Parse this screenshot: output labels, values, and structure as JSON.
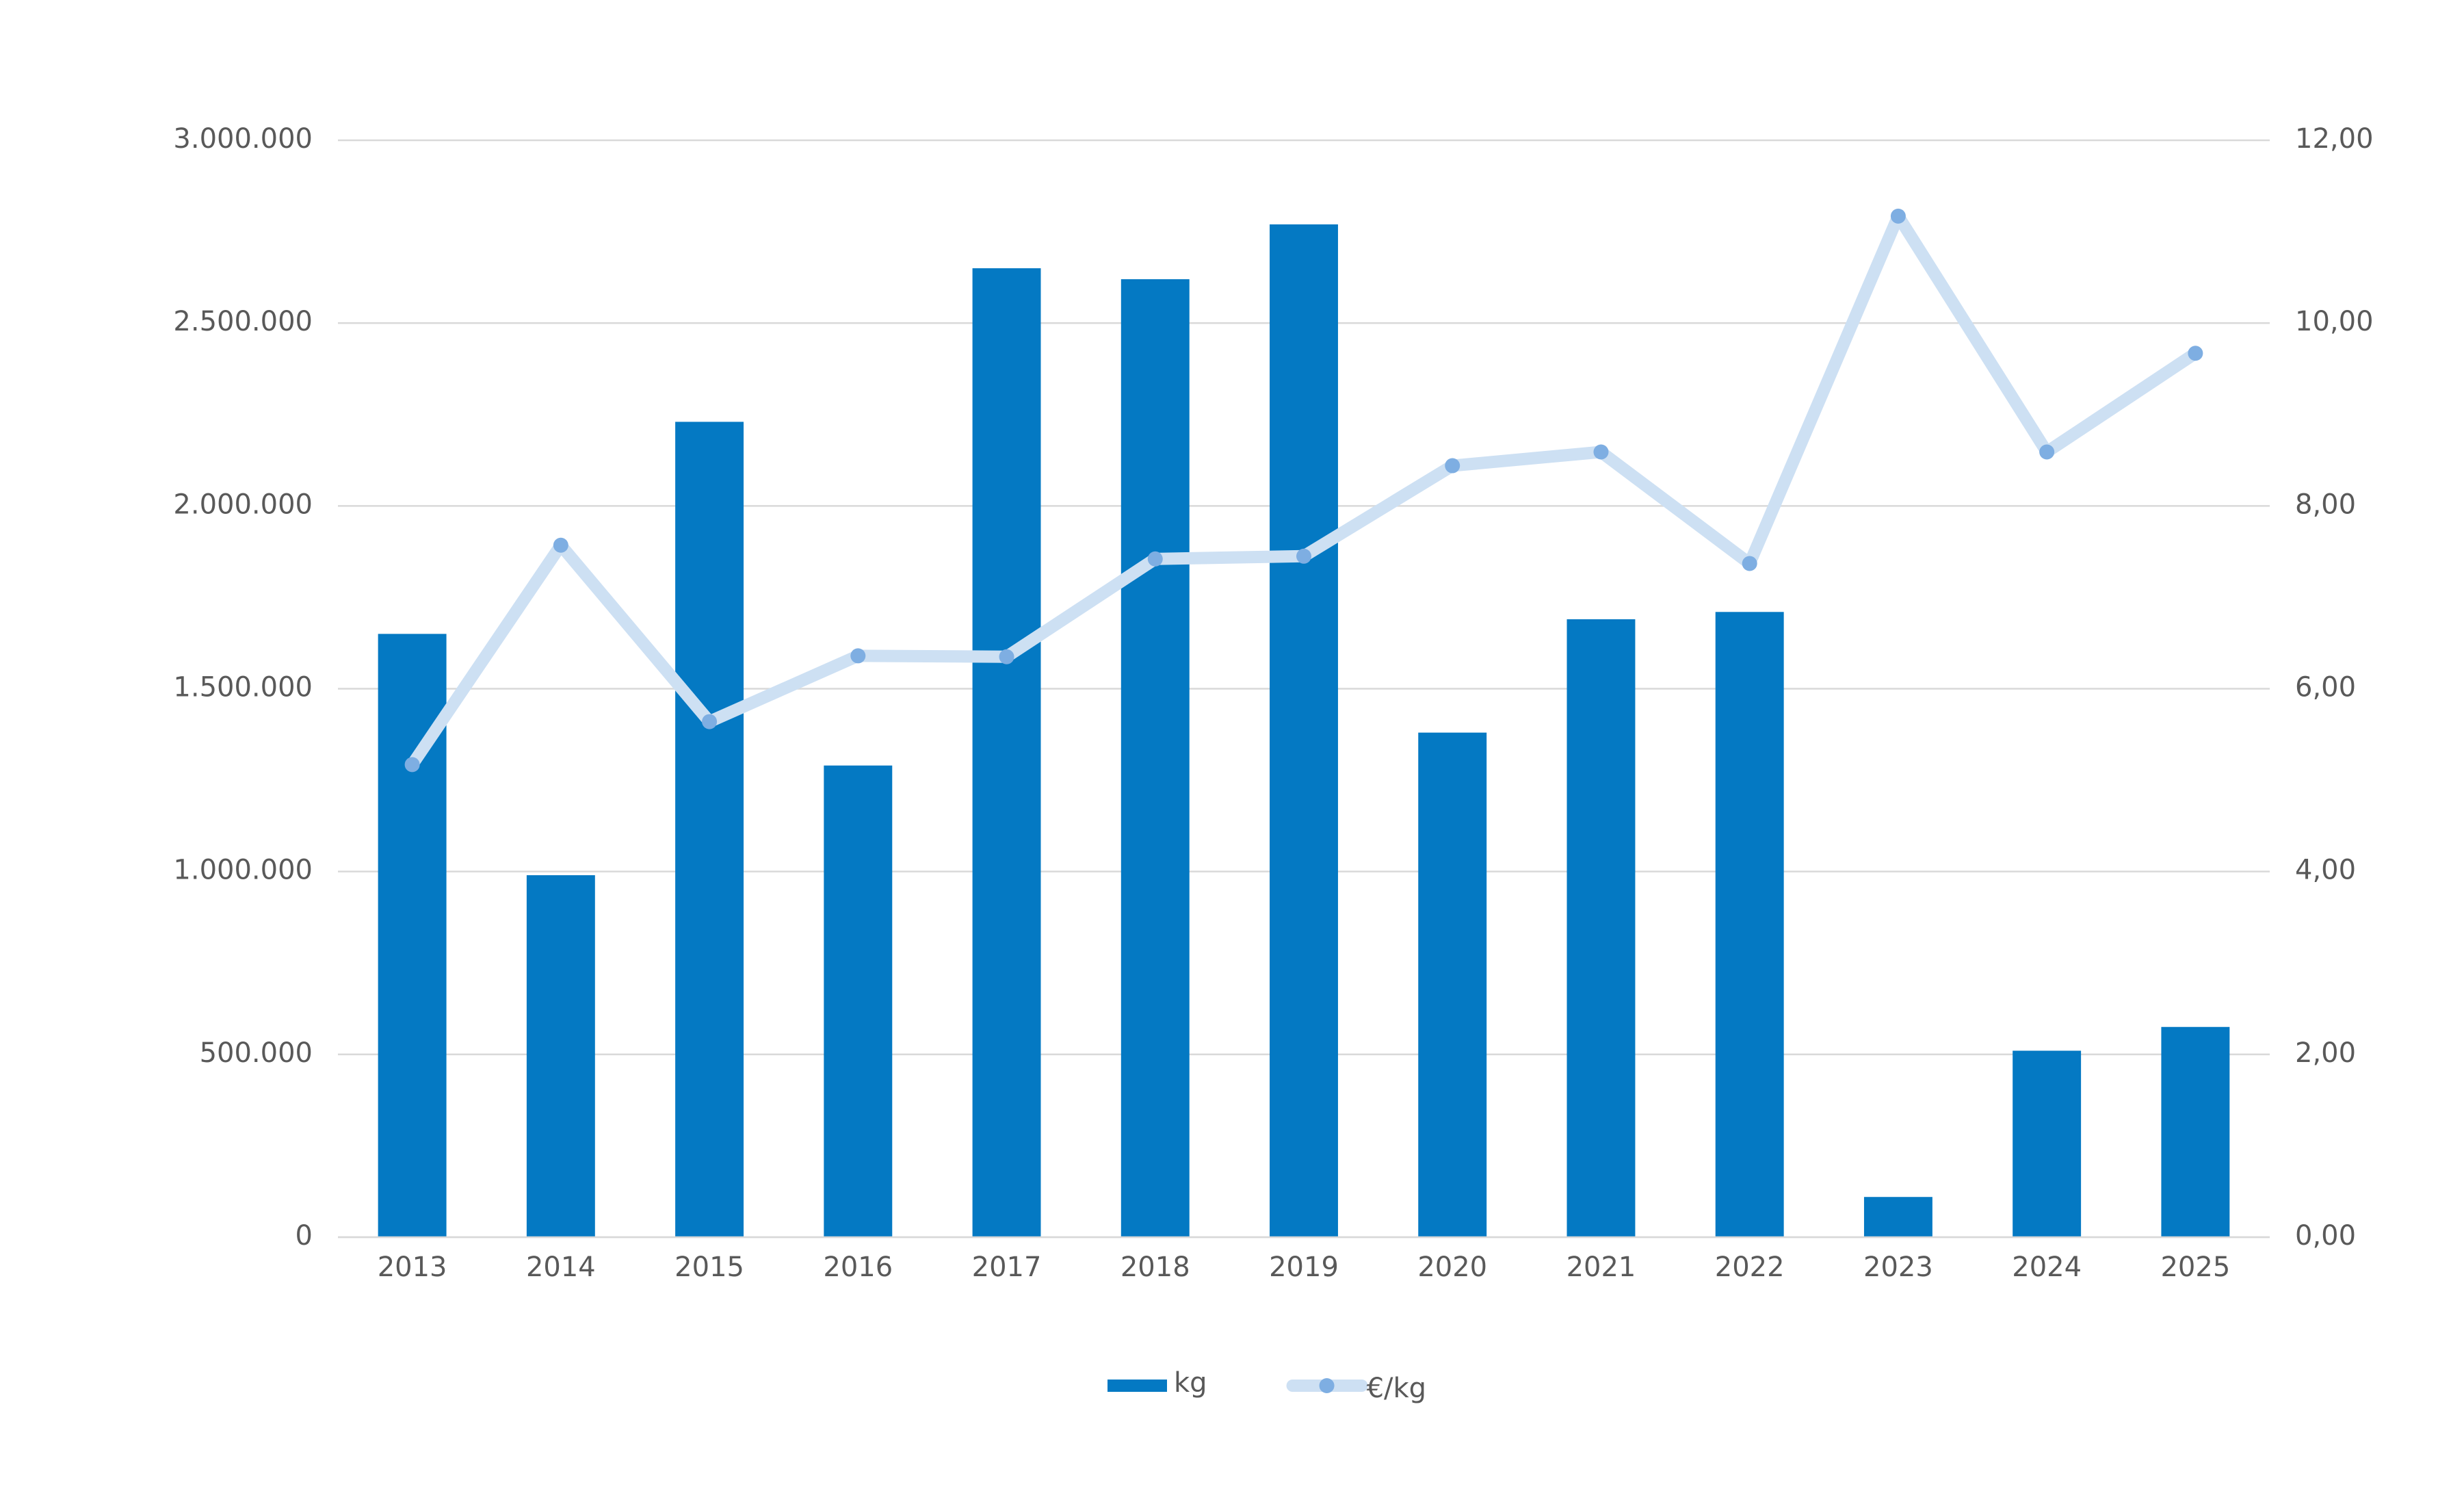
{
  "chart_data": {
    "type": "bar-line",
    "categories": [
      "2013",
      "2014",
      "2015",
      "2016",
      "2017",
      "2018",
      "2019",
      "2020",
      "2021",
      "2022",
      "2023",
      "2024",
      "2025"
    ],
    "series": [
      {
        "name": "kg",
        "type": "bar",
        "color": "#0479c3",
        "values": [
          1650000,
          990000,
          2230000,
          1290000,
          2650000,
          2620000,
          2770000,
          1380000,
          1690000,
          1710000,
          110000,
          510000,
          575000
        ]
      },
      {
        "name": "€/kg",
        "type": "line",
        "axis": "y2",
        "color": "#cde0f3",
        "marker_color": "#7eaee2",
        "values": [
          5.17,
          7.57,
          5.64,
          6.36,
          6.35,
          7.42,
          7.45,
          8.44,
          8.59,
          7.37,
          11.17,
          8.59,
          9.67
        ]
      }
    ],
    "ylim": [
      0,
      3000000
    ],
    "yticks": [
      0,
      {
        "value": 500000,
        "label": "500.000"
      },
      {
        "value": 1000000,
        "label": "1.000.000"
      },
      {
        "value": 1500000,
        "label": "1.500.000"
      },
      {
        "value": 2000000,
        "label": "2.000.000"
      },
      {
        "value": 2500000,
        "label": "2.500.000"
      },
      {
        "value": 3000000,
        "label": "3.000.000"
      }
    ],
    "y2lim": [
      0,
      12
    ],
    "y2ticks": [
      {
        "value": 0,
        "label": "0,00"
      },
      {
        "value": 2,
        "label": "2,00"
      },
      {
        "value": 4,
        "label": "4,00"
      },
      {
        "value": 6,
        "label": "6,00"
      },
      {
        "value": 8,
        "label": "8,00"
      },
      {
        "value": 10,
        "label": "10,00"
      },
      {
        "value": 12,
        "label": "12,00"
      }
    ],
    "grid": true,
    "legend": "bottom"
  }
}
